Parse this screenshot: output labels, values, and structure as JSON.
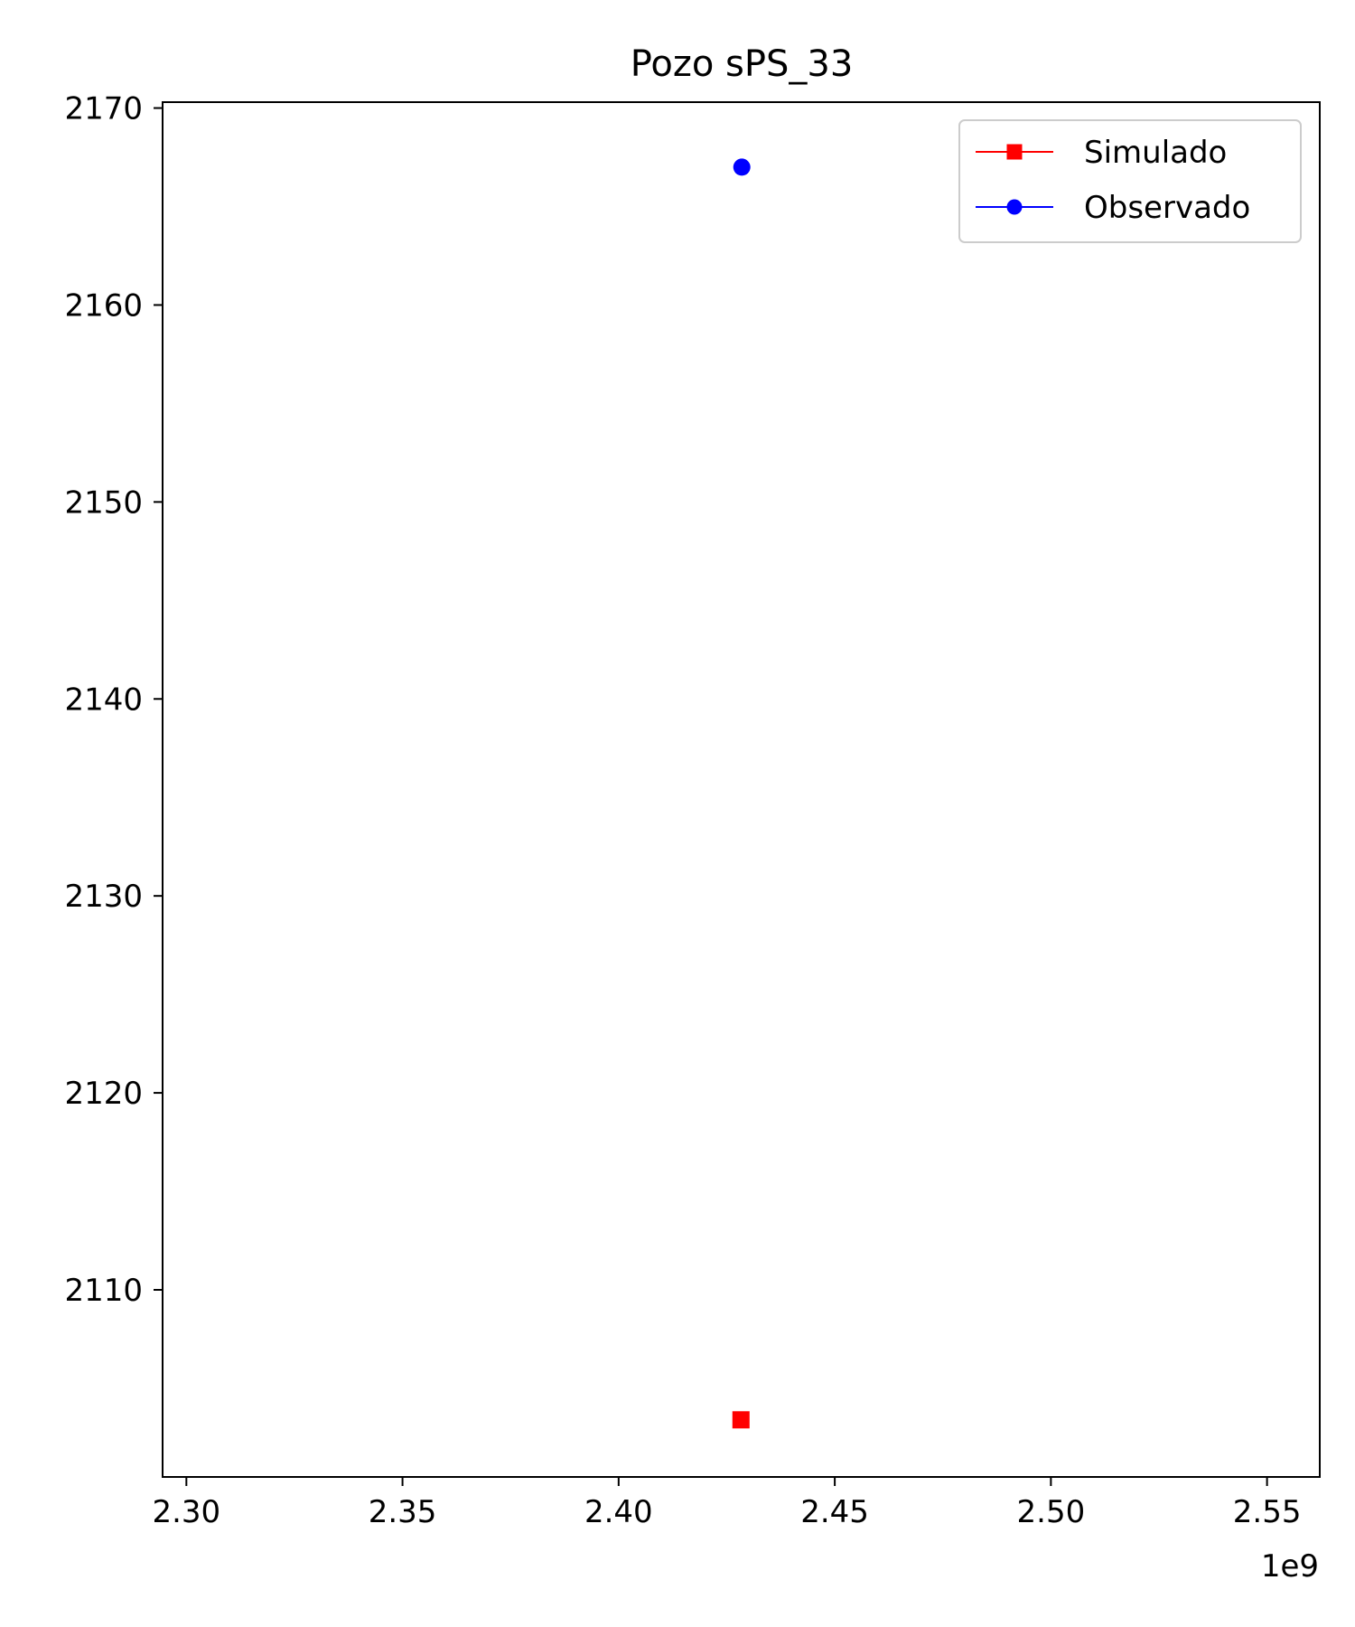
{
  "chart_data": {
    "type": "scatter",
    "title": "Pozo sPS_33",
    "xlabel": "",
    "ylabel": "",
    "x_offset_label": "1e9",
    "xlim": [
      2.2945,
      2.5622
    ],
    "ylim": [
      2100.5,
      2170.3
    ],
    "x_ticks": [
      2.3,
      2.35,
      2.4,
      2.45,
      2.5,
      2.55
    ],
    "x_tick_labels": [
      "2.30",
      "2.35",
      "2.40",
      "2.45",
      "2.50",
      "2.55"
    ],
    "y_ticks": [
      2110,
      2120,
      2130,
      2140,
      2150,
      2160,
      2170
    ],
    "y_tick_labels": [
      "2110",
      "2120",
      "2130",
      "2140",
      "2150",
      "2160",
      "2170"
    ],
    "grid": false,
    "legend_position": "upper-right",
    "series": [
      {
        "name": "Simulado",
        "color": "#ff0000",
        "marker": "square",
        "points": [
          {
            "x": 2.4283,
            "y": 2103.4
          }
        ]
      },
      {
        "name": "Observado",
        "color": "#0000ff",
        "marker": "circle",
        "points": [
          {
            "x": 2.4285,
            "y": 2167.0
          }
        ]
      }
    ]
  }
}
